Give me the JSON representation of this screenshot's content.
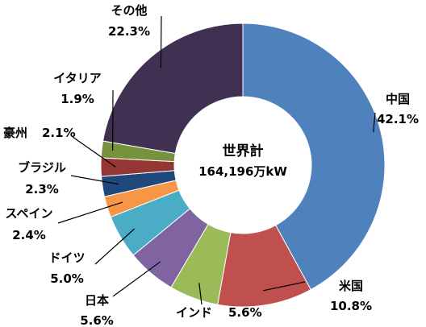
{
  "chart_data": {
    "type": "pie",
    "variant": "donut",
    "title": "",
    "center_label": {
      "line1": "世界計",
      "line2": "164,196万kW"
    },
    "start": "12 o'clock, clockwise",
    "slices": [
      {
        "label": "中国",
        "value": 42.1,
        "display": "42.1%",
        "color": "#4F81BD"
      },
      {
        "label": "米国",
        "value": 10.8,
        "display": "10.8%",
        "color": "#C0504D"
      },
      {
        "label": "インド",
        "value": 5.6,
        "display": "5.6%",
        "color": "#9BBB59"
      },
      {
        "label": "日本",
        "value": 5.6,
        "display": "5.6%",
        "color": "#8064A2"
      },
      {
        "label": "ドイツ",
        "value": 5.0,
        "display": "5.0%",
        "color": "#4BACC6"
      },
      {
        "label": "スペイン",
        "value": 2.4,
        "display": "2.4%",
        "color": "#F79646"
      },
      {
        "label": "ブラジル",
        "value": 2.3,
        "display": "2.3%",
        "color": "#1F497D"
      },
      {
        "label": "豪州",
        "value": 2.1,
        "display": "2.1%",
        "color": "#943634"
      },
      {
        "label": "イタリア",
        "value": 1.9,
        "display": "1.9%",
        "color": "#76923C"
      },
      {
        "label": "その他",
        "value": 22.3,
        "display": "22.3%",
        "color": "#403152"
      }
    ]
  }
}
